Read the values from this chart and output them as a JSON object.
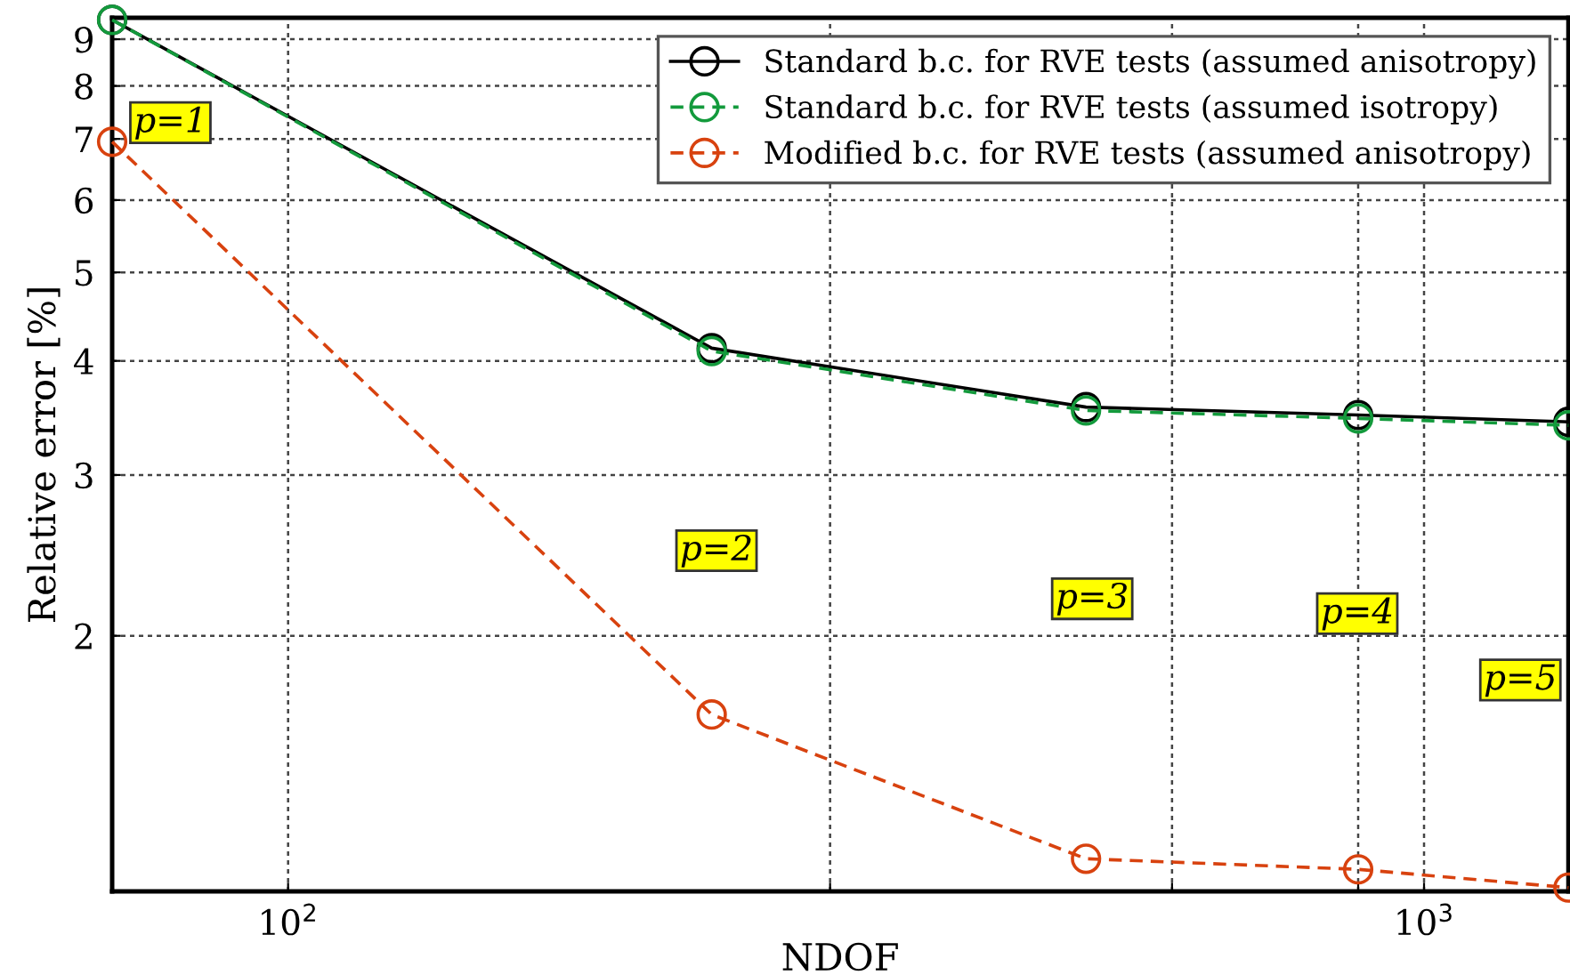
{
  "chart_data": {
    "type": "line",
    "xlabel": "NDOF",
    "ylabel": "Relative error [%]",
    "log": "xy",
    "grid": true,
    "legend": "top right",
    "marker": "circle",
    "xlim": [
      70,
      1340
    ],
    "xticks": [
      {
        "value": 100,
        "label": "10$^{2}$"
      },
      {
        "value": 300,
        "label": null
      },
      {
        "value": 600,
        "label": null
      },
      {
        "value": 875,
        "label": null
      },
      {
        "value": 1000,
        "label": "10$^{3}$"
      }
    ],
    "ylim": [
      1.05,
      9.5
    ],
    "yticks": [
      2,
      3,
      4,
      5,
      6,
      7,
      8,
      9
    ],
    "x": [
      70,
      236,
      504,
      875,
      1340
    ],
    "series": [
      {
        "name": "Standard b.c. for RVE tests (assumed anisotropy)",
        "color": "#000000",
        "line_style": "solid",
        "values": [
          9.45,
          4.13,
          3.56,
          3.49,
          3.43
        ]
      },
      {
        "name": "Standard b.c. for RVE tests (assumed isotropy)",
        "color": "#139a3c",
        "line_style": "dashed",
        "values": [
          9.45,
          4.1,
          3.53,
          3.46,
          3.4
        ]
      },
      {
        "name": "Modified b.c. for RVE tests (assumed anisotropy)",
        "color": "#d8420f",
        "line_style": "dashed",
        "values": [
          6.95,
          1.64,
          1.14,
          1.11,
          1.06
        ]
      }
    ],
    "annotations": [
      "p=1",
      "p=2",
      "p=3",
      "p=4",
      "p=5"
    ]
  }
}
